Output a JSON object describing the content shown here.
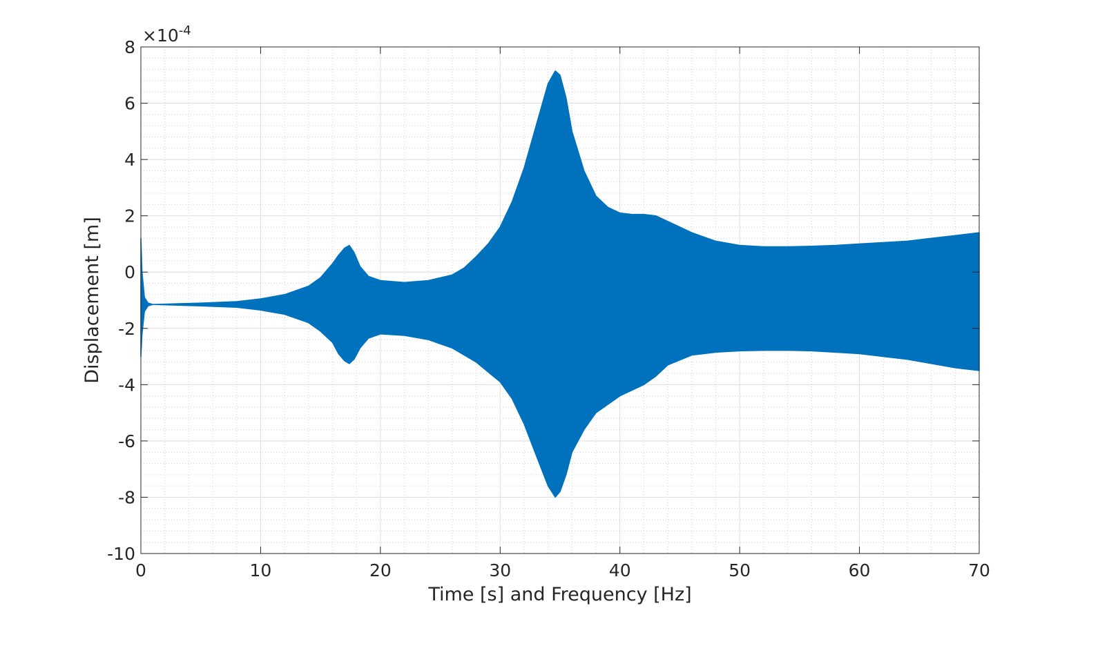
{
  "chart_data": {
    "type": "area",
    "title": "",
    "xlabel": "Time [s] and Frequency [Hz]",
    "ylabel": "Displacement [m]",
    "exponent_label": "×10",
    "exponent_power": "-4",
    "xlim": [
      0,
      70
    ],
    "ylim": [
      -10,
      8
    ],
    "xticks": [
      0,
      10,
      20,
      30,
      40,
      50,
      60,
      70
    ],
    "yticks": [
      -10,
      -8,
      -6,
      -4,
      -2,
      0,
      2,
      4,
      6,
      8
    ],
    "grid": true,
    "minor_grid": true,
    "series_color": "#0072BD",
    "series": [
      {
        "envelope_x": [
          0,
          0.1,
          0.3,
          0.6,
          1,
          5,
          8,
          10,
          12,
          14,
          15,
          16,
          16.5,
          17,
          17.4,
          17.8,
          18.3,
          19,
          20,
          22,
          24,
          26,
          27,
          28,
          29,
          30,
          31,
          32,
          33,
          34,
          34.6,
          35,
          35.5,
          36,
          37,
          38,
          39,
          40,
          41,
          42,
          43,
          44,
          46,
          48,
          50,
          52,
          54,
          56,
          58,
          60,
          62,
          64,
          66,
          68,
          70
        ],
        "upper": [
          1.2,
          0,
          -0.9,
          -1.1,
          -1.15,
          -1.1,
          -1.05,
          -0.95,
          -0.8,
          -0.5,
          -0.2,
          0.3,
          0.6,
          0.85,
          0.95,
          0.7,
          0.2,
          -0.15,
          -0.3,
          -0.37,
          -0.3,
          -0.1,
          0.15,
          0.55,
          1.0,
          1.6,
          2.5,
          3.7,
          5.2,
          6.7,
          7.15,
          7.0,
          6.2,
          5.0,
          3.6,
          2.7,
          2.3,
          2.1,
          2.05,
          2.05,
          2.0,
          1.8,
          1.4,
          1.1,
          0.95,
          0.9,
          0.9,
          0.92,
          0.95,
          1.0,
          1.05,
          1.1,
          1.2,
          1.3,
          1.4
        ],
        "lower": [
          -3.0,
          -2.2,
          -1.4,
          -1.2,
          -1.15,
          -1.2,
          -1.25,
          -1.35,
          -1.5,
          -1.8,
          -2.1,
          -2.5,
          -2.9,
          -3.15,
          -3.25,
          -3.1,
          -2.7,
          -2.35,
          -2.2,
          -2.25,
          -2.4,
          -2.7,
          -2.95,
          -3.2,
          -3.55,
          -3.9,
          -4.5,
          -5.4,
          -6.5,
          -7.6,
          -8.0,
          -7.8,
          -7.2,
          -6.4,
          -5.6,
          -5.0,
          -4.7,
          -4.4,
          -4.2,
          -4.0,
          -3.7,
          -3.3,
          -2.95,
          -2.85,
          -2.8,
          -2.78,
          -2.78,
          -2.8,
          -2.85,
          -2.9,
          -3.0,
          -3.1,
          -3.25,
          -3.4,
          -3.5
        ]
      }
    ]
  }
}
